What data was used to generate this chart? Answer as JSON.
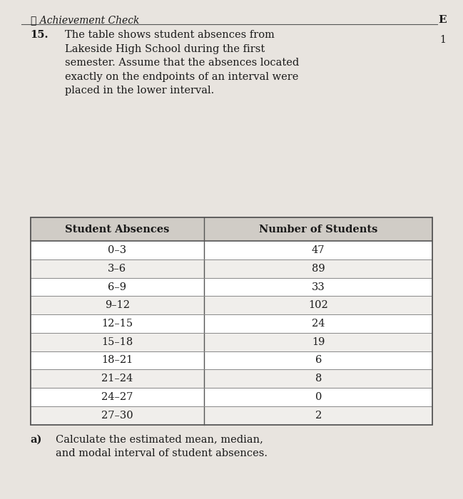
{
  "title_prefix": "15.",
  "title_text": "The table shows student absences from\nLakeside High School during the first\nsemester. Assume that the absences located\nexactly on the endpoints of an interval were\nplaced in the lower interval.",
  "section_header": "Achievement Check",
  "col1_header": "Student Absences",
  "col2_header": "Number of Students",
  "rows": [
    [
      "0–3",
      "47"
    ],
    [
      "3–6",
      "89"
    ],
    [
      "6–9",
      "33"
    ],
    [
      "9–12",
      "102"
    ],
    [
      "12–15",
      "24"
    ],
    [
      "15–18",
      "19"
    ],
    [
      "18–21",
      "6"
    ],
    [
      "21–24",
      "8"
    ],
    [
      "24–27",
      "0"
    ],
    [
      "27–30",
      "2"
    ]
  ],
  "footer_label": "a)",
  "footer_text": "Calculate the estimated mean, median,\nand modal interval of student absences.",
  "bg_color": "#e8e4df",
  "header_bg": "#d0ccc6",
  "text_color": "#1a1a1a",
  "checkmark": "✓",
  "right_letter": "E",
  "right_number": "1",
  "line_color": "#555555",
  "row_line_color": "#888888"
}
